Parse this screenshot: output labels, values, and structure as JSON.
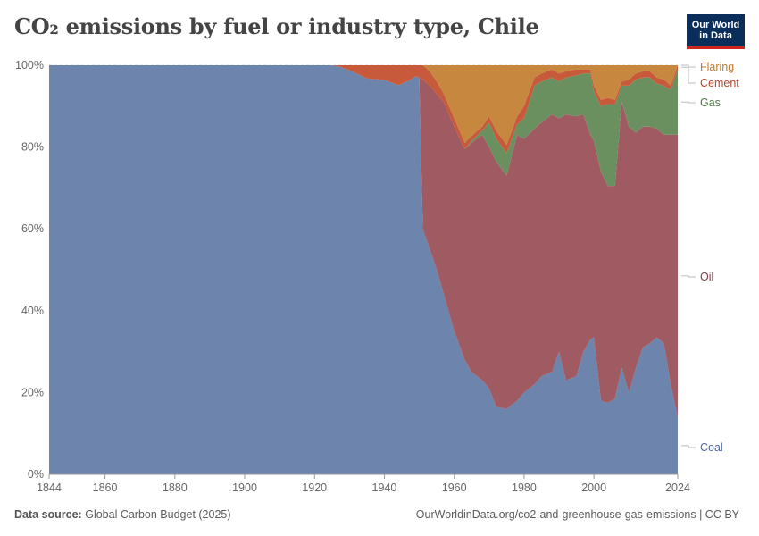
{
  "header": {
    "title": "CO₂ emissions by fuel or industry type, Chile",
    "logo_line1": "Our World",
    "logo_line2": "in Data"
  },
  "footer": {
    "source_label": "Data source:",
    "source_text": "Global Carbon Budget (2025)",
    "url": "OurWorldinData.org/co2-and-greenhouse-gas-emissions | CC BY"
  },
  "chart_data": {
    "type": "area",
    "stacked": true,
    "normalized": true,
    "title": "CO₂ emissions by fuel or industry type, Chile",
    "xlim": [
      1844,
      2024
    ],
    "ylim": [
      0,
      100
    ],
    "x_ticks": [
      1844,
      1860,
      1880,
      1900,
      1920,
      1940,
      1960,
      1980,
      2000,
      2024
    ],
    "y_ticks": [
      0,
      20,
      40,
      60,
      80,
      100
    ],
    "y_tick_labels": [
      "0%",
      "20%",
      "40%",
      "60%",
      "80%",
      "100%"
    ],
    "grid": "horizontal dashed",
    "legend": "right, inline labels",
    "x": [
      1844,
      1925,
      1927,
      1930,
      1935,
      1940,
      1944,
      1947,
      1949,
      1950,
      1951,
      1953,
      1955,
      1957,
      1960,
      1963,
      1965,
      1968,
      1970,
      1972,
      1975,
      1978,
      1980,
      1983,
      1985,
      1988,
      1990,
      1992,
      1995,
      1997,
      1999,
      2000,
      2002,
      2004,
      2006,
      2008,
      2010,
      2012,
      2014,
      2016,
      2018,
      2020,
      2022,
      2024
    ],
    "series": [
      {
        "name": "Coal",
        "color": "#6d84ad",
        "values": [
          100,
          100,
          99.7,
          98.8,
          96.8,
          96.4,
          95.1,
          96.2,
          97.3,
          97.0,
          60.0,
          55.0,
          50.0,
          44.0,
          35.0,
          28.0,
          25.0,
          23.0,
          21.0,
          16.5,
          16.0,
          18.0,
          20.0,
          22.0,
          24.0,
          25.0,
          30.0,
          23.0,
          24.0,
          30.0,
          33.0,
          33.5,
          18.0,
          17.5,
          18.5,
          26.0,
          20.0,
          26.0,
          31.0,
          32.0,
          33.5,
          32.0,
          22.0,
          14.0
        ]
      },
      {
        "name": "Oil",
        "color": "#a05a62",
        "values": [
          0,
          0,
          0,
          0,
          0,
          0,
          0,
          0,
          0,
          0,
          36.5,
          40.0,
          43.0,
          47.0,
          50.0,
          51.5,
          56.0,
          60.0,
          59.0,
          60.0,
          57.0,
          65.0,
          62.0,
          62.5,
          62.0,
          63.0,
          57.0,
          65.0,
          63.5,
          58.0,
          50.0,
          48.0,
          56.0,
          53.0,
          52.0,
          65.0,
          65.0,
          57.5,
          54.0,
          53.0,
          51.0,
          51.0,
          61.0,
          69.0
        ]
      },
      {
        "name": "Gas",
        "color": "#6b9060",
        "values": [
          0,
          0,
          0,
          0,
          0,
          0,
          0,
          0,
          0,
          0,
          0,
          0,
          0,
          0,
          0,
          0,
          0.5,
          1,
          6,
          5.5,
          5.5,
          2.5,
          5,
          10.5,
          10,
          9,
          9,
          9,
          10,
          10,
          15,
          12,
          16,
          20,
          20,
          4,
          10,
          13,
          12,
          12,
          11,
          12,
          11,
          16
        ]
      },
      {
        "name": "Cement",
        "color": "#c65a3a",
        "values": [
          0,
          0,
          0.3,
          1.2,
          3.2,
          3.6,
          4.9,
          3.8,
          2.7,
          3.0,
          3.5,
          3.5,
          3.0,
          2.0,
          2.0,
          1.5,
          1.2,
          1.0,
          1.5,
          2.0,
          2.0,
          2.0,
          3.0,
          2.0,
          2.0,
          2.0,
          2.0,
          1.5,
          1.5,
          1.0,
          1.0,
          1.5,
          1.5,
          1.5,
          1.0,
          1.0,
          1.5,
          1.5,
          1.5,
          1.5,
          1.5,
          1.5,
          1.0,
          1.0
        ]
      },
      {
        "name": "Flaring",
        "color": "#c8873f",
        "values": [
          0,
          0,
          0,
          0,
          0,
          0,
          0,
          0,
          0,
          0,
          0,
          1.5,
          4.0,
          7.0,
          13.0,
          19.0,
          17.3,
          15.0,
          12.5,
          16.0,
          19.5,
          12.5,
          10.0,
          3.0,
          2.0,
          1.0,
          2.0,
          1.5,
          1.0,
          1.0,
          1.0,
          5.0,
          8.5,
          8.0,
          8.5,
          4.0,
          3.5,
          2.0,
          1.5,
          1.5,
          3.0,
          3.5,
          5.0,
          0.0
        ]
      }
    ]
  }
}
